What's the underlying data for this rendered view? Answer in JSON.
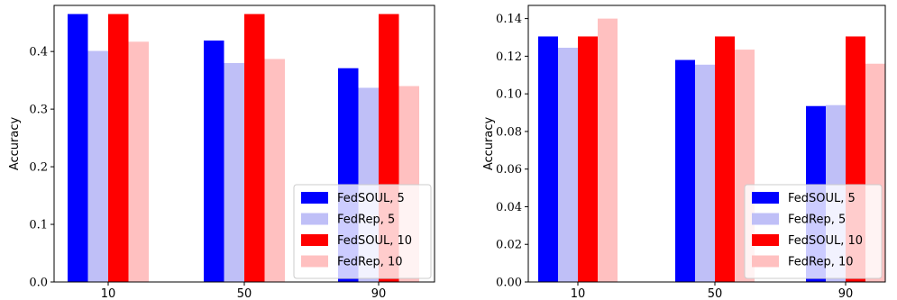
{
  "chart_data": [
    {
      "type": "bar",
      "categories": [
        "10",
        "50",
        "90"
      ],
      "ylabel": "Accuracy",
      "xlabel": "",
      "ylim": [
        0,
        0.48
      ],
      "yticks": [
        0.0,
        0.1,
        0.2,
        0.3,
        0.4
      ],
      "ytick_labels": [
        "0.0",
        "0.1",
        "0.2",
        "0.3",
        "0.4"
      ],
      "grid": false,
      "legend_position": "bottom-right",
      "series": [
        {
          "name": "FedSOUL, 5",
          "color": "#0000ff",
          "values": [
            0.465,
            0.419,
            0.371
          ]
        },
        {
          "name": "FedRep, 5",
          "color": "#bfbff7",
          "values": [
            0.401,
            0.38,
            0.337
          ]
        },
        {
          "name": "FedSOUL, 10",
          "color": "#ff0000",
          "values": [
            0.465,
            0.465,
            0.465
          ]
        },
        {
          "name": "FedRep, 10",
          "color": "#ffc0c0",
          "values": [
            0.417,
            0.387,
            0.34
          ]
        }
      ]
    },
    {
      "type": "bar",
      "categories": [
        "10",
        "50",
        "90"
      ],
      "ylabel": "Accuracy",
      "xlabel": "",
      "ylim": [
        0,
        0.147
      ],
      "yticks": [
        0.0,
        0.02,
        0.04,
        0.06,
        0.08,
        0.1,
        0.12,
        0.14
      ],
      "ytick_labels": [
        "0.00",
        "0.02",
        "0.04",
        "0.06",
        "0.08",
        "0.10",
        "0.12",
        "0.14"
      ],
      "grid": false,
      "legend_position": "bottom-right",
      "series": [
        {
          "name": "FedSOUL, 5",
          "color": "#0000ff",
          "values": [
            0.1305,
            0.118,
            0.0935
          ]
        },
        {
          "name": "FedRep, 5",
          "color": "#bfbff7",
          "values": [
            0.1245,
            0.1155,
            0.094
          ]
        },
        {
          "name": "FedSOUL, 10",
          "color": "#ff0000",
          "values": [
            0.1305,
            0.1305,
            0.1305
          ]
        },
        {
          "name": "FedRep, 10",
          "color": "#ffc0c0",
          "values": [
            0.14,
            0.1235,
            0.116
          ]
        }
      ]
    }
  ]
}
